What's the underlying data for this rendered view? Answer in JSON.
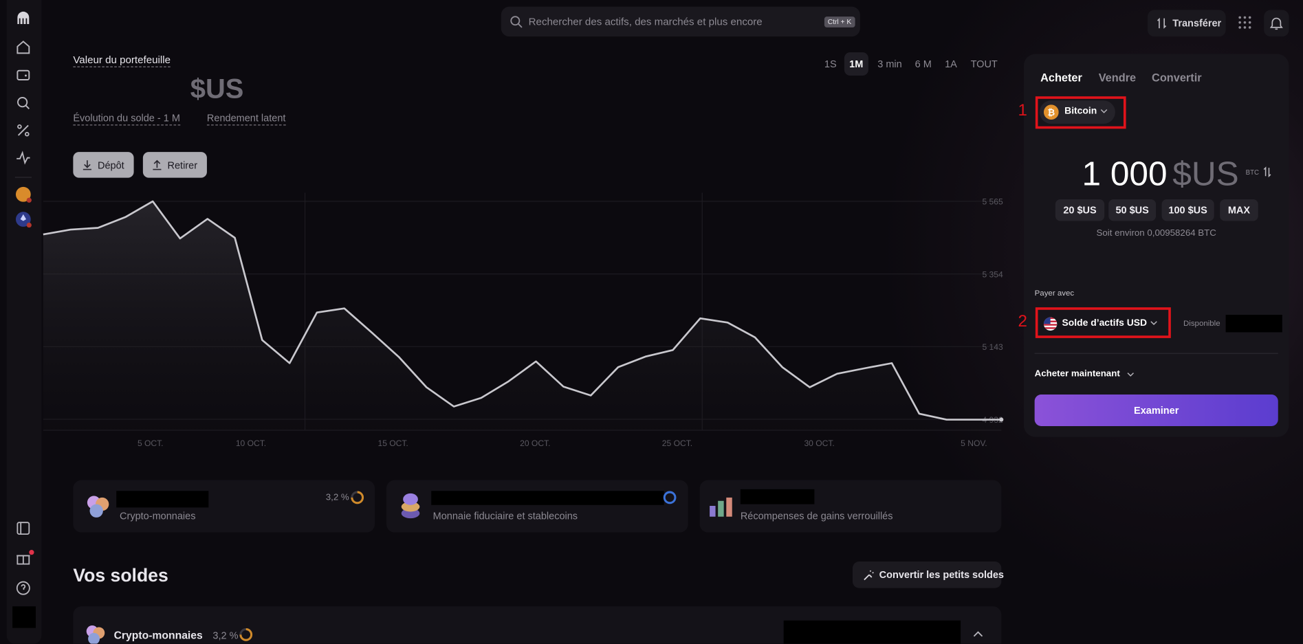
{
  "topbar": {
    "search_placeholder": "Rechercher des actifs, des marchés et plus encore",
    "shortcut": "Ctrl + K",
    "transfer": "Transférer"
  },
  "portfolio": {
    "title": "Valeur du portefeuille",
    "currency": "$US",
    "balance_change": "Évolution du solde - 1 M",
    "unrealized": "Rendement latent",
    "deposit": "Dépôt",
    "withdraw": "Retirer",
    "timeframes": [
      "1S",
      "1M",
      "3 min",
      "6 M",
      "1A",
      "TOUT"
    ],
    "selected_timeframe": 1
  },
  "chart": {
    "type": "line",
    "color": "#c9c8ce",
    "values": [
      5469,
      5483,
      5488,
      5519,
      5565,
      5457,
      5514,
      5459,
      5162,
      5095,
      5242,
      5254,
      5184,
      5112,
      5025,
      4969,
      4994,
      5042,
      5100,
      5027,
      5001,
      5083,
      5114,
      5133,
      5225,
      5213,
      5170,
      5083,
      5025,
      5064,
      5080,
      5095,
      4948,
      4931,
      4931,
      4931
    ],
    "x_labels": [
      "5 OCT.",
      "10 OCT.",
      "15 OCT.",
      "20 OCT.",
      "25 OCT.",
      "30 OCT.",
      "5 NOV."
    ],
    "ylim": [
      4900,
      5590
    ],
    "yticks": [
      {
        "value": 5565,
        "label": "5 565"
      },
      {
        "value": 5354,
        "label": "5 354"
      },
      {
        "value": 5143,
        "label": "5 143"
      },
      {
        "value": 4932,
        "label": "4 932"
      }
    ]
  },
  "cards": [
    {
      "label": "Crypto-monnaies",
      "percent": "3,2 %"
    },
    {
      "label": "Monnaie fiduciaire et stablecoins"
    },
    {
      "label": "Récompenses de gains verrouillés"
    }
  ],
  "balances": {
    "title": "Vos soldes",
    "convert_small": "Convertir les petits soldes",
    "rows": [
      {
        "label": "Crypto-monnaies",
        "percent": "3,2 %"
      }
    ]
  },
  "trade": {
    "tabs": [
      "Acheter",
      "Vendre",
      "Convertir"
    ],
    "markers": [
      "1",
      "2"
    ],
    "asset": "Bitcoin",
    "amount": "1 000",
    "amount_currency": "$US",
    "unit": "BTC",
    "quick_amounts": [
      "20 $US",
      "50 $US",
      "100 $US",
      "MAX"
    ],
    "estimate": "Soit environ 0,00958264 BTC",
    "pay_with_label": "Payer avec",
    "pay_with": "Solde d’actifs USD",
    "available": "Disponible",
    "buy_now": "Acheter maintenant",
    "review": "Examiner"
  }
}
